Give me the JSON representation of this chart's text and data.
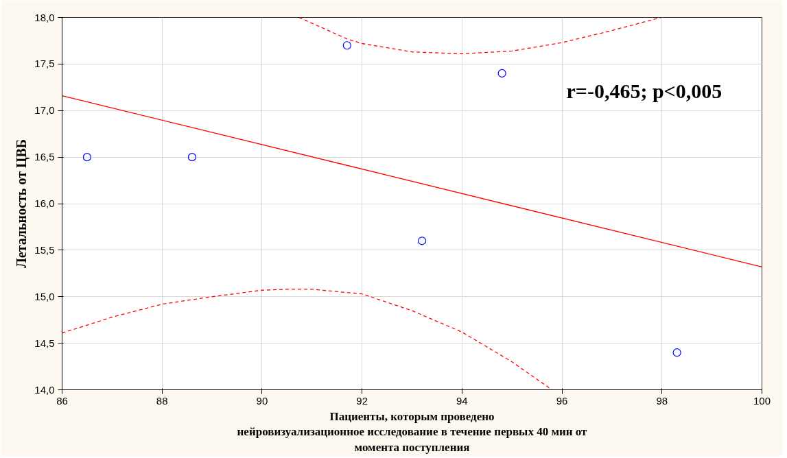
{
  "chart_data": {
    "type": "scatter",
    "xlabel": "Пациенты, которым проведено\nнейровизуализационное исследование в течение первых 40 мин от\nмомента поступления",
    "ylabel": "Летальность от ЦВБ",
    "annotations": [
      "r=-0,465; p<0,005"
    ],
    "xlim": [
      86,
      100
    ],
    "xticks": [
      86,
      88,
      90,
      92,
      94,
      96,
      98,
      100
    ],
    "ylim": [
      14,
      18
    ],
    "yticks": [
      {
        "value": 14,
        "label": "14,0"
      },
      {
        "value": 14.5,
        "label": "14,5"
      },
      {
        "value": 15,
        "label": "15,0"
      },
      {
        "value": 15.5,
        "label": "15,5"
      },
      {
        "value": 16,
        "label": "16,0"
      },
      {
        "value": 16.5,
        "label": "16,5"
      },
      {
        "value": 17,
        "label": "17,0"
      },
      {
        "value": 17.5,
        "label": "17,5"
      },
      {
        "value": 18,
        "label": "18,0"
      }
    ],
    "grid": true,
    "series": [
      {
        "color": "#0000ff",
        "marker": "circle",
        "x": [
          86.5,
          88.6,
          91.7,
          94.8,
          93.2,
          98.3
        ],
        "values": [
          16.5,
          16.5,
          17.7,
          17.4,
          15.6,
          14.4
        ]
      },
      {
        "type": "line",
        "color": "#ff0000",
        "line_style": "solid",
        "marker": "none",
        "x": [
          86,
          100
        ],
        "values": [
          17.16,
          15.32
        ]
      },
      {
        "type": "line",
        "color": "#ff0000",
        "line_style": "dashed",
        "marker": "none",
        "x": [
          90.74,
          91.7,
          92,
          93,
          94,
          95,
          96,
          97,
          97.98
        ],
        "values": [
          18,
          17.77,
          17.72,
          17.63,
          17.61,
          17.64,
          17.73,
          17.86,
          18
        ]
      },
      {
        "type": "line",
        "color": "#ff0000",
        "line_style": "dashed",
        "marker": "none",
        "x": [
          86,
          87,
          88,
          89,
          90,
          90.5,
          91,
          92,
          93,
          94,
          95,
          95.8
        ],
        "values": [
          14.61,
          14.78,
          14.92,
          15.0,
          15.07,
          15.08,
          15.08,
          15.03,
          14.85,
          14.62,
          14.3,
          14.0
        ]
      }
    ]
  }
}
